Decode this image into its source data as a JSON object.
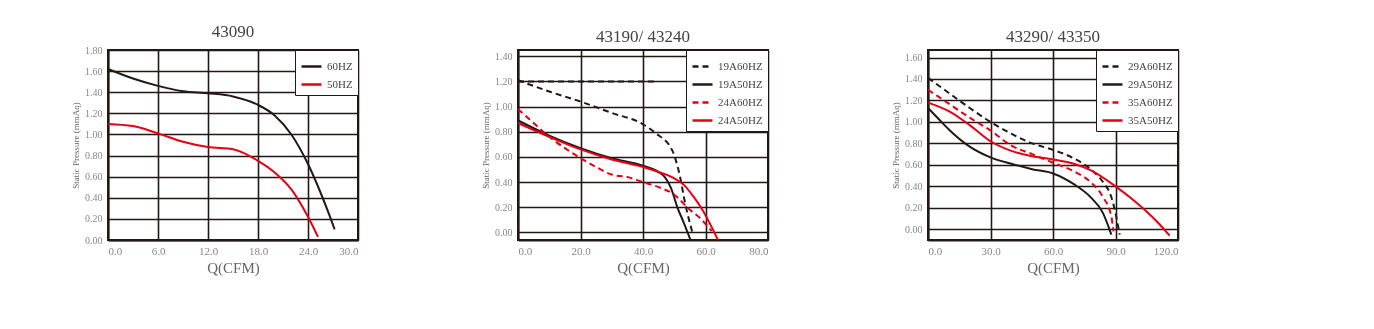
{
  "chart_data": [
    {
      "type": "line",
      "title": "43090",
      "xlabel": "Q(CFM)",
      "ylabel": "Static Pressure (mmAq)",
      "xlim": [
        0,
        30
      ],
      "ylim": [
        0,
        1.8
      ],
      "xticks": [
        {
          "value": 0,
          "label": "0.0"
        },
        {
          "value": 6,
          "label": "6.0"
        },
        {
          "value": 12,
          "label": "12.0"
        },
        {
          "value": 18,
          "label": "18.0"
        },
        {
          "value": 24,
          "label": "24.0"
        },
        {
          "value": 30,
          "label": "30.0"
        }
      ],
      "yticks": [
        {
          "value": 0,
          "label": "0.00"
        },
        {
          "value": 0.2,
          "label": "0.20"
        },
        {
          "value": 0.4,
          "label": "0.40"
        },
        {
          "value": 0.6,
          "label": "0.60"
        },
        {
          "value": 0.8,
          "label": "0.80"
        },
        {
          "value": 1.0,
          "label": "1.00"
        },
        {
          "value": 1.2,
          "label": "1.20"
        },
        {
          "value": 1.4,
          "label": "1.40"
        },
        {
          "value": 1.6,
          "label": "1.60"
        },
        {
          "value": 1.8,
          "label": "1.80"
        }
      ],
      "grid": true,
      "legend": "top right",
      "series": [
        {
          "name": "60HZ",
          "color": "#231815",
          "line_style": "solid",
          "x": [
            0,
            3,
            6,
            9,
            12,
            15,
            18,
            20,
            22,
            24,
            25.5,
            26.5,
            27.2
          ],
          "values": [
            1.62,
            1.53,
            1.46,
            1.41,
            1.39,
            1.36,
            1.28,
            1.18,
            1.0,
            0.72,
            0.45,
            0.25,
            0.1
          ]
        },
        {
          "name": "50HZ",
          "color": "#e60012",
          "line_style": "solid",
          "x": [
            0,
            3,
            6,
            9,
            12,
            15,
            18,
            20,
            22,
            24,
            25.2
          ],
          "values": [
            1.1,
            1.08,
            1.01,
            0.93,
            0.88,
            0.86,
            0.75,
            0.64,
            0.48,
            0.22,
            0.03
          ]
        }
      ]
    },
    {
      "type": "line",
      "title": "43190/ 43240",
      "xlabel": "Q(CFM)",
      "ylabel": "Static Pressure (mmAq)",
      "xlim": [
        0,
        80
      ],
      "ylim": [
        -0.06,
        1.45
      ],
      "xticks": [
        {
          "value": 0,
          "label": "0.0"
        },
        {
          "value": 20,
          "label": "20.0"
        },
        {
          "value": 40,
          "label": "40.0"
        },
        {
          "value": 60,
          "label": "60.0"
        },
        {
          "value": 80,
          "label": "80.0"
        }
      ],
      "yticks": [
        {
          "value": 0,
          "label": "0.00"
        },
        {
          "value": 0.2,
          "label": "0.20"
        },
        {
          "value": 0.4,
          "label": "0.40"
        },
        {
          "value": 0.6,
          "label": "0.60"
        },
        {
          "value": 0.8,
          "label": "0.80"
        },
        {
          "value": 1.0,
          "label": "1.00"
        },
        {
          "value": 1.2,
          "label": "1.20"
        },
        {
          "value": 1.4,
          "label": "1.40"
        }
      ],
      "grid": true,
      "legend": "top right",
      "series": [
        {
          "color": "#231815",
          "line_style": "dashed",
          "x": [
            0,
            44
          ],
          "values": [
            1.2,
            1.2
          ]
        },
        {
          "name": "19A60HZ",
          "color": "#231815",
          "line_style": "dashed",
          "x": [
            0,
            10,
            20,
            30,
            40,
            44,
            49.4,
            51.7,
            53.5,
            55.8
          ],
          "values": [
            1.21,
            1.12,
            1.04,
            0.95,
            0.86,
            0.79,
            0.65,
            0.46,
            0.23,
            0.0
          ]
        },
        {
          "name": "19A50HZ",
          "color": "#231815",
          "line_style": "solid",
          "x": [
            0,
            10,
            20,
            30,
            40,
            45,
            47,
            49,
            51,
            53,
            55.2
          ],
          "values": [
            0.89,
            0.77,
            0.67,
            0.59,
            0.53,
            0.48,
            0.44,
            0.35,
            0.2,
            0.08,
            -0.06
          ]
        },
        {
          "name": "24A60HZ",
          "color": "#e60012",
          "line_style": "dashed",
          "x": [
            0,
            5,
            10,
            15,
            20,
            25,
            30,
            35,
            40,
            45,
            50,
            55,
            58,
            62
          ],
          "values": [
            0.98,
            0.87,
            0.76,
            0.67,
            0.59,
            0.52,
            0.46,
            0.44,
            0.4,
            0.36,
            0.3,
            0.18,
            0.12,
            0.01
          ]
        },
        {
          "name": "24A50HZ",
          "color": "#e60012",
          "line_style": "solid",
          "x": [
            0,
            10,
            20,
            30,
            40,
            45,
            50,
            53,
            56,
            59,
            61,
            64
          ],
          "values": [
            0.87,
            0.76,
            0.66,
            0.58,
            0.52,
            0.48,
            0.43,
            0.38,
            0.29,
            0.18,
            0.09,
            -0.06
          ]
        }
      ]
    },
    {
      "type": "line",
      "title": "43290/ 43350",
      "xlabel": "Q(CFM)",
      "ylabel": "Static Pressure (mmAq)",
      "xlim": [
        0,
        120
      ],
      "ylim": [
        -0.1,
        1.67
      ],
      "xticks": [
        {
          "value": 0,
          "label": "0.0"
        },
        {
          "value": 30,
          "label": "30.0"
        },
        {
          "value": 60,
          "label": "60.0"
        },
        {
          "value": 90,
          "label": "90.0"
        },
        {
          "value": 120,
          "label": "120.0"
        }
      ],
      "yticks": [
        {
          "value": 0,
          "label": "0.00"
        },
        {
          "value": 0.2,
          "label": "0.20"
        },
        {
          "value": 0.4,
          "label": "0.40"
        },
        {
          "value": 0.6,
          "label": "0.60"
        },
        {
          "value": 0.8,
          "label": "0.80"
        },
        {
          "value": 1.0,
          "label": "1.00"
        },
        {
          "value": 1.2,
          "label": "1.20"
        },
        {
          "value": 1.4,
          "label": "1.40"
        },
        {
          "value": 1.6,
          "label": "1.60"
        }
      ],
      "grid": true,
      "legend": "top right",
      "series": [
        {
          "name": "29A60HZ",
          "color": "#231815",
          "line_style": "dashed",
          "x": [
            0,
            10,
            20,
            30,
            40,
            50,
            60,
            70,
            78,
            84,
            88,
            90,
            92
          ],
          "values": [
            1.41,
            1.27,
            1.13,
            1.0,
            0.89,
            0.8,
            0.74,
            0.66,
            0.56,
            0.44,
            0.3,
            0.15,
            -0.05
          ]
        },
        {
          "name": "29A50HZ",
          "color": "#231815",
          "line_style": "solid",
          "x": [
            0,
            5,
            10,
            20,
            30,
            40,
            50,
            60,
            70,
            78,
            84,
            88
          ],
          "values": [
            1.13,
            1.03,
            0.93,
            0.77,
            0.67,
            0.61,
            0.56,
            0.52,
            0.42,
            0.3,
            0.15,
            -0.05
          ]
        },
        {
          "name": "35A60HZ",
          "color": "#e60012",
          "line_style": "dashed",
          "x": [
            0,
            10,
            20,
            30,
            40,
            50,
            60,
            70,
            78,
            84,
            88,
            89
          ],
          "values": [
            1.3,
            1.17,
            1.04,
            0.92,
            0.78,
            0.7,
            0.62,
            0.54,
            0.44,
            0.3,
            0.12,
            -0.02
          ]
        },
        {
          "name": "35A50HZ",
          "color": "#e60012",
          "line_style": "solid",
          "x": [
            0,
            10,
            20,
            30,
            40,
            50,
            60,
            70,
            78,
            90,
            100,
            110,
            116
          ],
          "values": [
            1.18,
            1.1,
            0.97,
            0.82,
            0.73,
            0.68,
            0.65,
            0.61,
            0.55,
            0.4,
            0.25,
            0.07,
            -0.06
          ]
        }
      ]
    }
  ]
}
